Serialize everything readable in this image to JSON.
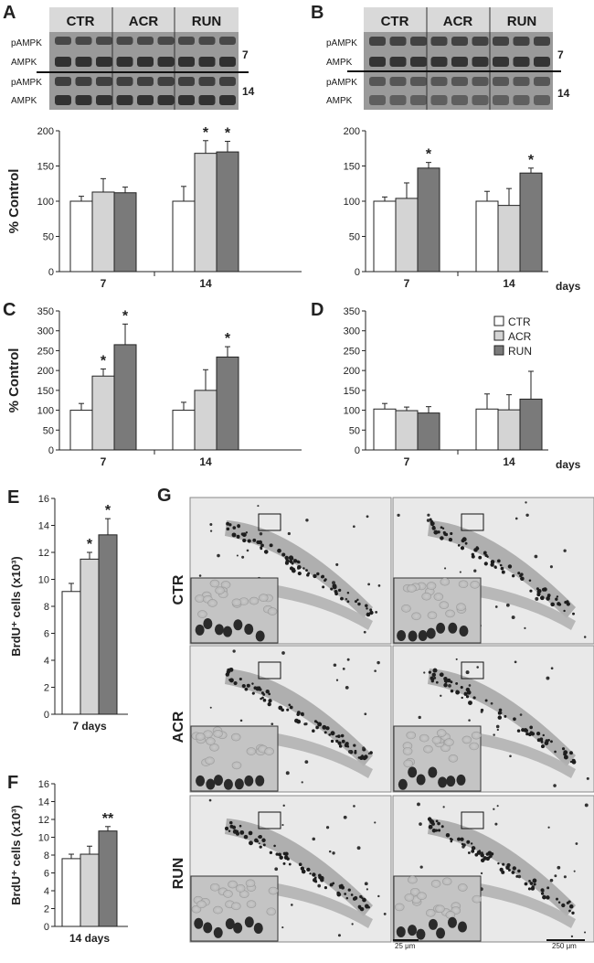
{
  "colors": {
    "CTR": "#ffffff",
    "ACR": "#d4d4d4",
    "RUN": "#7a7a7a",
    "axis": "#222222"
  },
  "panel_letters": {
    "A": "A",
    "B": "B",
    "C": "C",
    "D": "D",
    "E": "E",
    "F": "F",
    "G": "G"
  },
  "blots": {
    "conditions": [
      "CTR",
      "ACR",
      "RUN"
    ],
    "row_labels": [
      "pAMPK",
      "AMPK",
      "pAMPK",
      "AMPK"
    ],
    "day_labels": [
      "7",
      "14"
    ]
  },
  "histology": {
    "row_labels": [
      "CTR",
      "ACR",
      "RUN"
    ],
    "scalebar_small": "25 μm",
    "scalebar_large": "250 μm"
  },
  "chart_data": [
    {
      "panel": "A",
      "type": "bar",
      "ylabel": "% Control",
      "ylim": [
        0,
        200
      ],
      "yticks": [
        0,
        50,
        100,
        150,
        200
      ],
      "categories": [
        "7",
        "14"
      ],
      "xunit": "",
      "series": [
        {
          "name": "CTR",
          "values": [
            100,
            100
          ],
          "errors": [
            7,
            21
          ]
        },
        {
          "name": "ACR",
          "values": [
            113,
            168
          ],
          "errors": [
            19,
            18
          ]
        },
        {
          "name": "RUN",
          "values": [
            112,
            170
          ],
          "errors": [
            8,
            15
          ]
        }
      ],
      "stars": [
        [
          "",
          ""
        ],
        [
          "",
          "*"
        ],
        [
          "",
          "*"
        ]
      ]
    },
    {
      "panel": "B",
      "type": "bar",
      "ylabel": "",
      "ylim": [
        0,
        200
      ],
      "yticks": [
        0,
        50,
        100,
        150,
        200
      ],
      "categories": [
        "7",
        "14"
      ],
      "xunit": "days",
      "series": [
        {
          "name": "CTR",
          "values": [
            100,
            100
          ],
          "errors": [
            6,
            14
          ]
        },
        {
          "name": "ACR",
          "values": [
            104,
            94
          ],
          "errors": [
            22,
            24
          ]
        },
        {
          "name": "RUN",
          "values": [
            147,
            140
          ],
          "errors": [
            8,
            7
          ]
        }
      ],
      "stars": [
        [
          "",
          ""
        ],
        [
          "",
          ""
        ],
        [
          "*",
          "*"
        ]
      ]
    },
    {
      "panel": "C",
      "type": "bar",
      "ylabel": "% Control",
      "ylim": [
        0,
        350
      ],
      "yticks": [
        0,
        50,
        100,
        150,
        200,
        250,
        300,
        350
      ],
      "categories": [
        "7",
        "14"
      ],
      "xunit": "",
      "series": [
        {
          "name": "CTR",
          "values": [
            100,
            100
          ],
          "errors": [
            17,
            20
          ]
        },
        {
          "name": "ACR",
          "values": [
            186,
            150
          ],
          "errors": [
            18,
            52
          ]
        },
        {
          "name": "RUN",
          "values": [
            265,
            234
          ],
          "errors": [
            52,
            26
          ]
        }
      ],
      "stars": [
        [
          "",
          ""
        ],
        [
          "*",
          ""
        ],
        [
          "*",
          "*"
        ]
      ]
    },
    {
      "panel": "D",
      "type": "bar",
      "ylabel": "",
      "ylim": [
        0,
        350
      ],
      "yticks": [
        0,
        50,
        100,
        150,
        200,
        250,
        300,
        350
      ],
      "categories": [
        "7",
        "14"
      ],
      "xunit": "days",
      "legend": [
        "CTR",
        "ACR",
        "RUN"
      ],
      "series": [
        {
          "name": "CTR",
          "values": [
            103,
            103
          ],
          "errors": [
            14,
            38
          ]
        },
        {
          "name": "ACR",
          "values": [
            99,
            101
          ],
          "errors": [
            9,
            38
          ]
        },
        {
          "name": "RUN",
          "values": [
            93,
            128
          ],
          "errors": [
            16,
            70
          ]
        }
      ],
      "stars": [
        [
          "",
          ""
        ],
        [
          "",
          ""
        ],
        [
          "",
          ""
        ]
      ]
    },
    {
      "panel": "E",
      "type": "bar",
      "ylabel": "BrdU⁺ cells (x10³)",
      "ylim": [
        0,
        16
      ],
      "yticks": [
        0,
        2,
        4,
        6,
        8,
        10,
        12,
        14,
        16
      ],
      "categories": [
        "7 days"
      ],
      "xunit": "",
      "series": [
        {
          "name": "CTR",
          "values": [
            9.1
          ],
          "errors": [
            0.6
          ]
        },
        {
          "name": "ACR",
          "values": [
            11.5
          ],
          "errors": [
            0.5
          ]
        },
        {
          "name": "RUN",
          "values": [
            13.3
          ],
          "errors": [
            1.2
          ]
        }
      ],
      "stars": [
        [
          ""
        ],
        [
          "*"
        ],
        [
          "*"
        ]
      ]
    },
    {
      "panel": "F",
      "type": "bar",
      "ylabel": "BrdU⁺ cells (x10³)",
      "ylim": [
        0,
        16
      ],
      "yticks": [
        0,
        2,
        4,
        6,
        8,
        10,
        12,
        14,
        16
      ],
      "categories": [
        "14 days"
      ],
      "xunit": "",
      "series": [
        {
          "name": "CTR",
          "values": [
            7.6
          ],
          "errors": [
            0.5
          ]
        },
        {
          "name": "ACR",
          "values": [
            8.1
          ],
          "errors": [
            0.9
          ]
        },
        {
          "name": "RUN",
          "values": [
            10.7
          ],
          "errors": [
            0.5
          ]
        }
      ],
      "stars": [
        [
          ""
        ],
        [
          ""
        ],
        [
          "**"
        ]
      ]
    }
  ]
}
